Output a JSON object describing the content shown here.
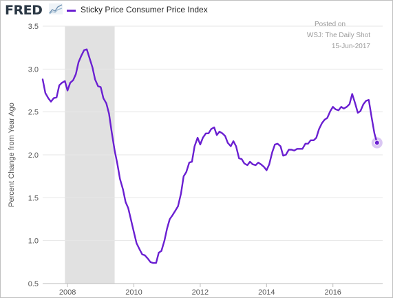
{
  "header": {
    "logo_text": "FRED",
    "logo_graph_icon": "chart-line-icon"
  },
  "legend": {
    "label": "Sticky Price Consumer Price Index",
    "color": "#6a1fd1"
  },
  "annotation": {
    "line1": "Posted on",
    "line2": "WSJ: The Daily Shot",
    "line3": "15-Jun-2017"
  },
  "chart_data": {
    "type": "line",
    "title": "",
    "ylabel": "Percent Change from Year Ago",
    "xlabel": "",
    "ylim": [
      0.5,
      3.5
    ],
    "xlim": [
      2007.25,
      2017.5
    ],
    "y_ticks": [
      "0.5",
      "1.0",
      "1.5",
      "2.0",
      "2.5",
      "3.0",
      "3.5"
    ],
    "x_ticks": [
      "2008",
      "2010",
      "2012",
      "2014",
      "2016"
    ],
    "grid": "horizontal",
    "recession_shading": [
      [
        2007.92,
        2009.42
      ]
    ],
    "recession_color": "#e1e1e1",
    "line_color": "#6a1fd1",
    "series": [
      {
        "name": "Sticky Price Consumer Price Index",
        "x": [
          2007.25,
          2007.33,
          2007.42,
          2007.5,
          2007.58,
          2007.67,
          2007.75,
          2007.83,
          2007.92,
          2008.0,
          2008.08,
          2008.17,
          2008.25,
          2008.33,
          2008.42,
          2008.5,
          2008.58,
          2008.67,
          2008.75,
          2008.83,
          2008.92,
          2009.0,
          2009.08,
          2009.17,
          2009.25,
          2009.33,
          2009.42,
          2009.5,
          2009.58,
          2009.67,
          2009.75,
          2009.83,
          2009.92,
          2010.0,
          2010.08,
          2010.17,
          2010.25,
          2010.33,
          2010.42,
          2010.5,
          2010.58,
          2010.67,
          2010.75,
          2010.83,
          2010.92,
          2011.0,
          2011.08,
          2011.17,
          2011.25,
          2011.33,
          2011.42,
          2011.5,
          2011.58,
          2011.67,
          2011.75,
          2011.83,
          2011.92,
          2012.0,
          2012.08,
          2012.17,
          2012.25,
          2012.33,
          2012.42,
          2012.5,
          2012.58,
          2012.67,
          2012.75,
          2012.83,
          2012.92,
          2013.0,
          2013.08,
          2013.17,
          2013.25,
          2013.33,
          2013.42,
          2013.5,
          2013.58,
          2013.67,
          2013.75,
          2013.83,
          2013.92,
          2014.0,
          2014.08,
          2014.17,
          2014.25,
          2014.33,
          2014.42,
          2014.5,
          2014.58,
          2014.67,
          2014.75,
          2014.83,
          2014.92,
          2015.0,
          2015.08,
          2015.17,
          2015.25,
          2015.33,
          2015.42,
          2015.5,
          2015.58,
          2015.67,
          2015.75,
          2015.83,
          2015.92,
          2016.0,
          2016.08,
          2016.17,
          2016.25,
          2016.33,
          2016.42,
          2016.5,
          2016.58,
          2016.67,
          2016.75,
          2016.83,
          2016.92,
          2017.0,
          2017.08,
          2017.17,
          2017.25,
          2017.33
        ],
        "values": [
          2.88,
          2.72,
          2.66,
          2.62,
          2.66,
          2.67,
          2.81,
          2.84,
          2.86,
          2.75,
          2.84,
          2.87,
          2.94,
          3.08,
          3.16,
          3.22,
          3.23,
          3.12,
          3.02,
          2.88,
          2.8,
          2.79,
          2.66,
          2.6,
          2.48,
          2.27,
          2.05,
          1.9,
          1.72,
          1.6,
          1.45,
          1.38,
          1.23,
          1.1,
          0.97,
          0.9,
          0.84,
          0.83,
          0.79,
          0.75,
          0.74,
          0.74,
          0.86,
          0.88,
          1.0,
          1.14,
          1.25,
          1.3,
          1.35,
          1.4,
          1.55,
          1.75,
          1.8,
          1.91,
          1.92,
          2.1,
          2.2,
          2.12,
          2.2,
          2.25,
          2.25,
          2.3,
          2.32,
          2.23,
          2.27,
          2.25,
          2.22,
          2.14,
          2.1,
          2.16,
          2.1,
          1.96,
          1.95,
          1.9,
          1.88,
          1.92,
          1.89,
          1.88,
          1.91,
          1.89,
          1.86,
          1.82,
          1.89,
          2.03,
          2.12,
          2.13,
          2.1,
          1.99,
          2.0,
          2.06,
          2.06,
          2.05,
          2.07,
          2.07,
          2.07,
          2.13,
          2.13,
          2.17,
          2.17,
          2.2,
          2.3,
          2.37,
          2.41,
          2.43,
          2.51,
          2.56,
          2.53,
          2.52,
          2.56,
          2.54,
          2.56,
          2.59,
          2.71,
          2.6,
          2.49,
          2.51,
          2.59,
          2.63,
          2.64,
          2.43,
          2.25,
          2.14
        ]
      }
    ]
  }
}
